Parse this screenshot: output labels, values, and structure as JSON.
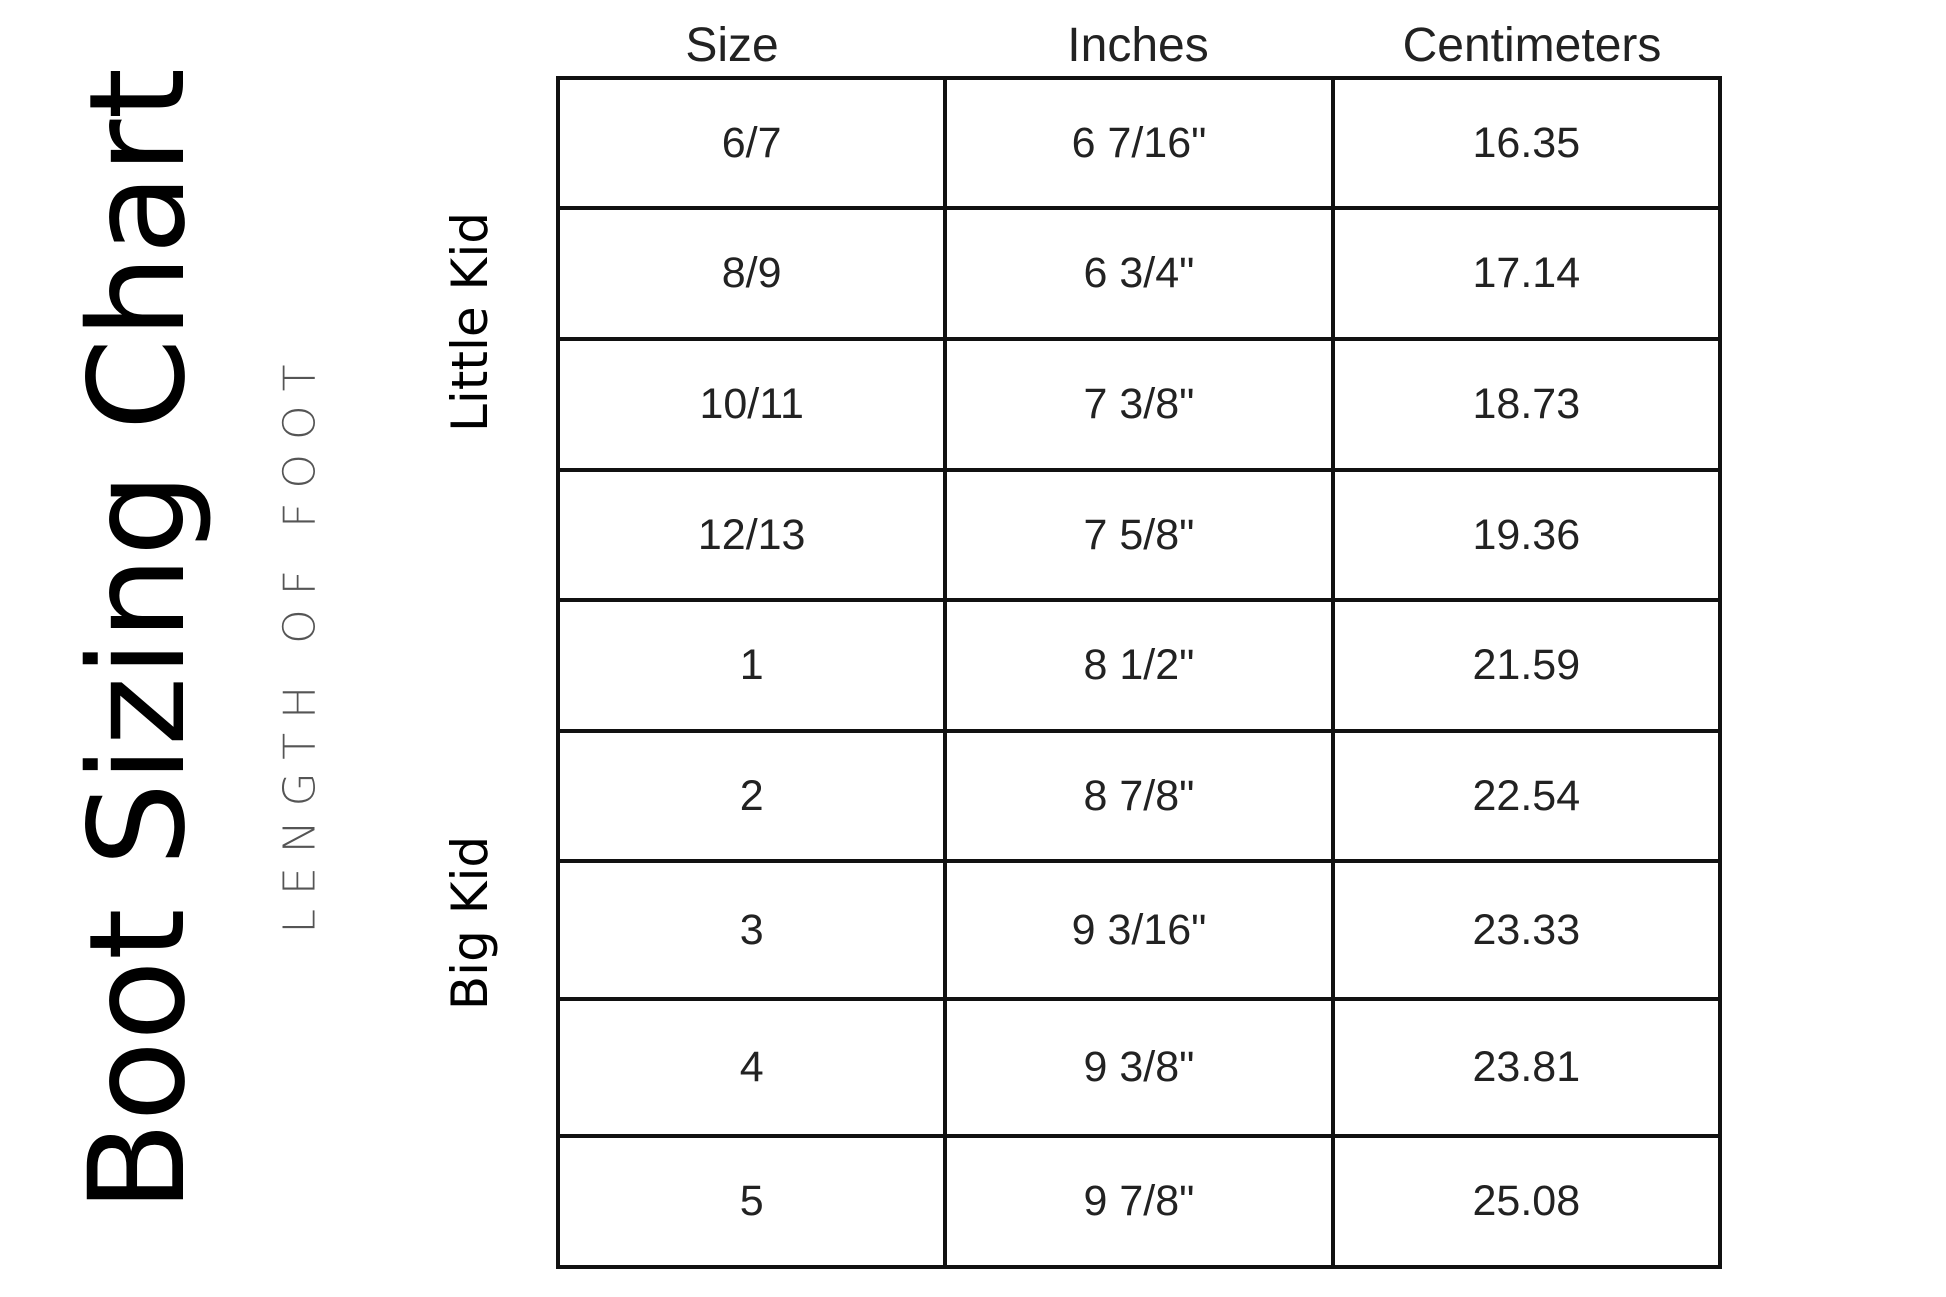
{
  "title": "Boot Sizing Chart",
  "subtitle": "LENGTH OF FOOT",
  "groups": [
    "Little Kid",
    "Big Kid"
  ],
  "columns": [
    "Size",
    "Inches",
    "Centimeters"
  ],
  "rows": [
    [
      "6/7",
      "6 7/16\"",
      "16.35"
    ],
    [
      "8/9",
      "6 3/4\"",
      "17.14"
    ],
    [
      "10/11",
      "7 3/8\"",
      "18.73"
    ],
    [
      "12/13",
      "7 5/8\"",
      "19.36"
    ],
    [
      "1",
      "8 1/2\"",
      "21.59"
    ],
    [
      "2",
      "8 7/8\"",
      "22.54"
    ],
    [
      "3",
      "9 3/16\"",
      "23.33"
    ],
    [
      "4",
      "9 3/8\"",
      "23.81"
    ],
    [
      "5",
      "9 7/8\"",
      "25.08"
    ]
  ]
}
